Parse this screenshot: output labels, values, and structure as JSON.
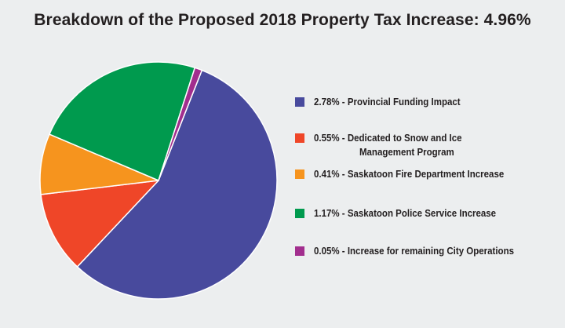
{
  "chart_data": {
    "type": "pie",
    "title": "Breakdown of the Proposed 2018 Property Tax Increase: 4.96%",
    "start_angle_deg": -68.5,
    "direction": "clockwise",
    "slices": [
      {
        "label": "2.78% - Provincial Funding Impact",
        "value": 2.78,
        "color": "#484a9d"
      },
      {
        "label": "0.55% - Dedicated to Snow and Ice Management Program",
        "label_line1": "0.55% - Dedicated to Snow and Ice",
        "label_line2": "Management Program",
        "value": 0.55,
        "color": "#ef4628"
      },
      {
        "label": "0.41% - Saskatoon Fire Department Increase",
        "value": 0.41,
        "color": "#f6941e"
      },
      {
        "label": "1.17% - Saskatoon Police Service Increase",
        "value": 1.17,
        "color": "#009a4e"
      },
      {
        "label": "0.05% - Increase for remaining City Operations",
        "value": 0.05,
        "color": "#a22e8e"
      }
    ],
    "legend_position": "right"
  }
}
